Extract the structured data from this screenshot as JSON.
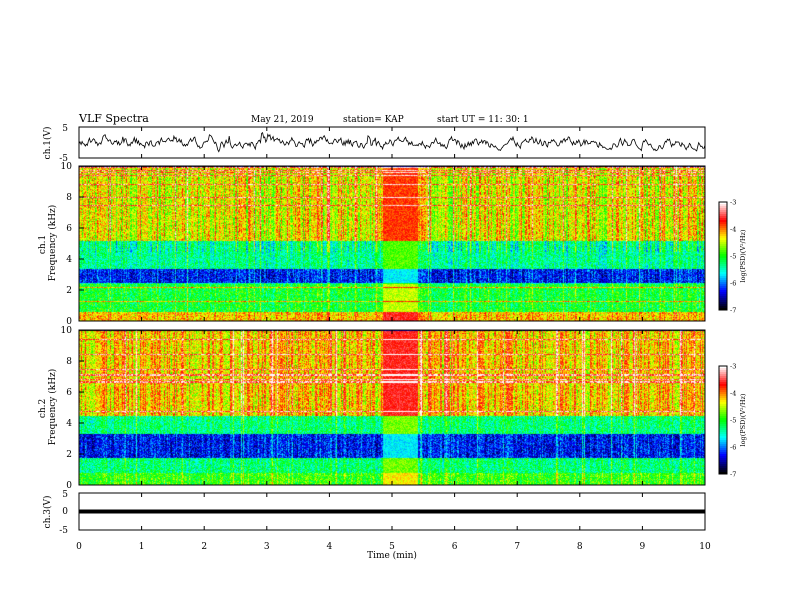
{
  "header": {
    "title": "VLF Spectra",
    "date": "May 21, 2019",
    "station": "station= KAP",
    "start": "start  UT =   11: 30: 1"
  },
  "colors": {
    "colormap": [
      "#000000",
      "#0000ff",
      "#00ffff",
      "#00ff00",
      "#ffff00",
      "#ff0000",
      "#ffffff"
    ],
    "trace": "#000000"
  },
  "chart_data": [
    {
      "type": "line",
      "panel": "ch1-waveform",
      "ylabel": "ch.1(V)",
      "ylim": [
        -5,
        5
      ],
      "yticks": [
        "5",
        "-5"
      ],
      "xlim": [
        0,
        10
      ],
      "description_values": "noisy voltage trace fluctuating mostly between about -2 and 2 V"
    },
    {
      "type": "heatmap",
      "panel": "ch1-spectrogram",
      "ylabel": "ch.1\nFrequency (kHz)",
      "ylim": [
        0,
        10
      ],
      "yticks": [
        "0",
        "2",
        "4",
        "6",
        "8",
        "10"
      ],
      "xlim": [
        0,
        10
      ],
      "colorbar": {
        "label": "log(PSD)(V²/Hz)",
        "range": [
          -7,
          -3
        ],
        "ticks": [
          "-3",
          "-4",
          "-5",
          "-6",
          "-7"
        ]
      },
      "bands_khz": [
        {
          "from": 0.0,
          "to": 0.6,
          "level": -4.2
        },
        {
          "from": 0.6,
          "to": 2.4,
          "level": -5.1
        },
        {
          "from": 2.4,
          "to": 3.4,
          "level": -6.3
        },
        {
          "from": 3.4,
          "to": 5.2,
          "level": -5.4
        },
        {
          "from": 5.2,
          "to": 10.0,
          "level": -4.4
        }
      ],
      "event_window_min": [
        4.85,
        5.4
      ]
    },
    {
      "type": "heatmap",
      "panel": "ch2-spectrogram",
      "ylabel": "ch.2\nFrequency (kHz)",
      "ylim": [
        0,
        10
      ],
      "yticks": [
        "0",
        "2",
        "4",
        "6",
        "8",
        "10"
      ],
      "xlim": [
        0,
        10
      ],
      "colorbar": {
        "label": "log(PSD)(V²/Hz)",
        "range": [
          -7,
          -3
        ],
        "ticks": [
          "-3",
          "-4",
          "-5",
          "-6",
          "-7"
        ]
      },
      "bands_khz": [
        {
          "from": 0.0,
          "to": 0.8,
          "level": -4.9
        },
        {
          "from": 0.8,
          "to": 1.8,
          "level": -5.3
        },
        {
          "from": 1.8,
          "to": 3.3,
          "level": -6.3
        },
        {
          "from": 3.3,
          "to": 4.5,
          "level": -5.3
        },
        {
          "from": 4.5,
          "to": 10.0,
          "level": -4.2
        }
      ],
      "event_window_min": [
        4.85,
        5.4
      ]
    },
    {
      "type": "line",
      "panel": "ch3-waveform",
      "ylabel": "ch.3(V)",
      "ylim": [
        -5,
        5
      ],
      "yticks": [
        "5",
        "0",
        "-5"
      ],
      "xlim": [
        0,
        10
      ],
      "values_constant": 0,
      "xlabel": "Time (min)",
      "xticks": [
        "0",
        "1",
        "2",
        "3",
        "4",
        "5",
        "6",
        "7",
        "8",
        "9",
        "10"
      ]
    }
  ]
}
